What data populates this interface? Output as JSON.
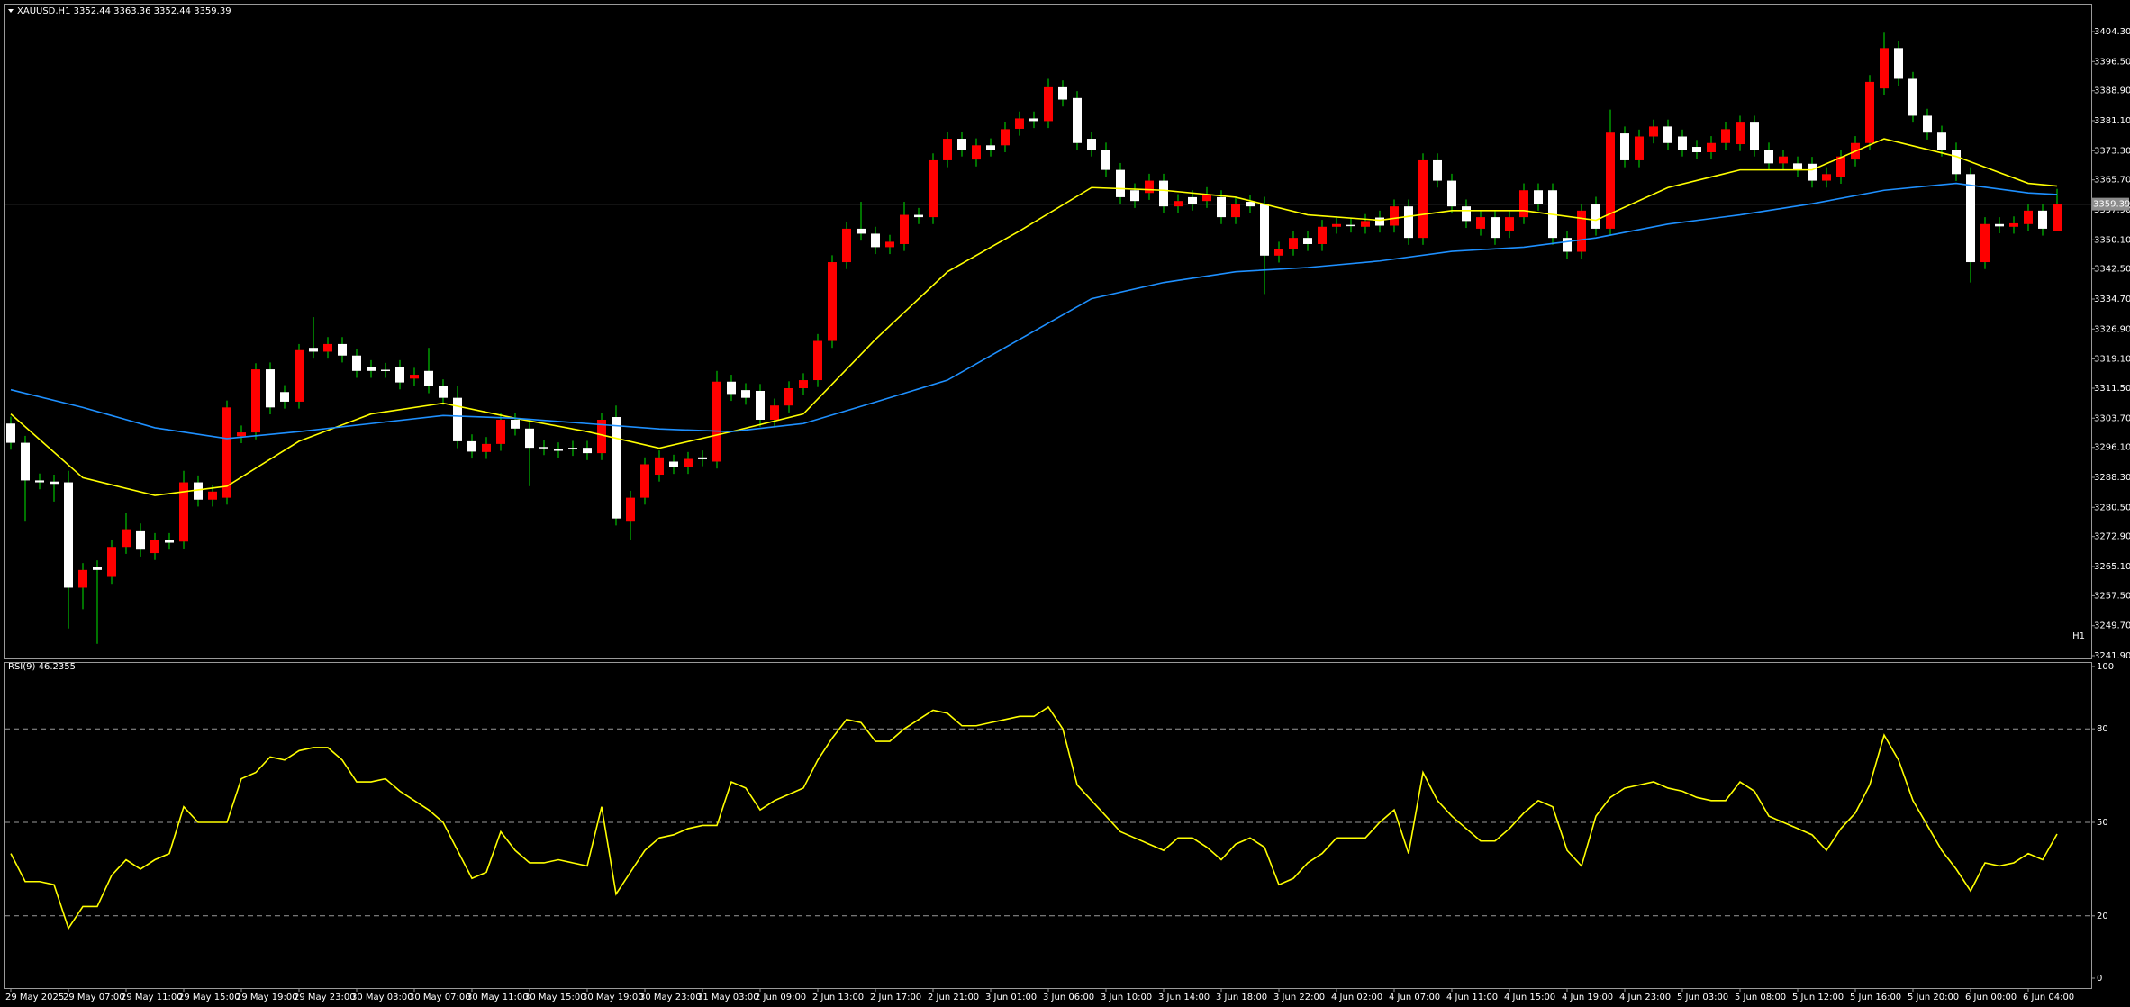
{
  "header": "XAUUSD,H1  3352.44 3363.36 3352.44 3359.39",
  "chart_data": [
    {
      "type": "candlestick",
      "label": "H1",
      "categories": [
        "29 May 2025",
        null,
        null,
        null,
        "29 May 07:00",
        null,
        null,
        null,
        "29 May 11:00",
        null,
        null,
        null,
        "29 May 15:00",
        null,
        null,
        null,
        "29 May 19:00",
        null,
        null,
        null,
        "29 May 23:00",
        null,
        null,
        null,
        "30 May 03:00",
        null,
        null,
        null,
        "30 May 07:00",
        null,
        null,
        null,
        "30 May 11:00",
        null,
        null,
        null,
        "30 May 15:00",
        null,
        null,
        null,
        "30 May 19:00",
        null,
        null,
        null,
        "30 May 23:00",
        null,
        null,
        null,
        "31 May 03:00",
        null,
        null,
        null,
        "2 Jun 09:00",
        null,
        null,
        null,
        "2 Jun 13:00",
        null,
        null,
        null,
        "2 Jun 17:00",
        null,
        null,
        null,
        "2 Jun 21:00",
        null,
        null,
        null,
        "3 Jun 01:00",
        null,
        null,
        null,
        "3 Jun 06:00",
        null,
        null,
        null,
        "3 Jun 10:00",
        null,
        null,
        null,
        "3 Jun 14:00",
        null,
        null,
        null,
        "3 Jun 18:00",
        null,
        null,
        null,
        "3 Jun 22:00",
        null,
        null,
        null,
        "4 Jun 02:00",
        null,
        null,
        null,
        "4 Jun 07:00",
        null,
        null,
        null,
        "4 Jun 11:00",
        null,
        null,
        null,
        "4 Jun 15:00",
        null,
        null,
        null,
        "4 Jun 19:00",
        null,
        null,
        null,
        "4 Jun 23:00",
        null,
        null,
        null,
        "5 Jun 03:00",
        null,
        null,
        null,
        "5 Jun 08:00",
        null,
        null,
        null,
        "5 Jun 12:00",
        null,
        null,
        null,
        "5 Jun 16:00",
        null,
        null,
        null,
        "5 Jun 20:00",
        null,
        null,
        null,
        "6 Jun 00:00",
        null,
        null,
        null,
        "6 Jun 04:00",
        null,
        null
      ],
      "open": [
        3302.3,
        3297.3,
        3287.5,
        3287.2,
        3287.0,
        3259.6,
        3264.9,
        3262.4,
        3270.2,
        3274.5,
        3268.6,
        3272.0,
        3271.6,
        3287.0,
        3282.5,
        3283.0,
        3299.0,
        3300.0,
        3316.4,
        3310.5,
        3308.0,
        3322.0,
        3321.0,
        3323.0,
        3320.0,
        3317.0,
        3316.3,
        3317.0,
        3314.0,
        3316.0,
        3312.0,
        3309.0,
        3297.7,
        3294.9,
        3297.0,
        3303.3,
        3301.0,
        3296.2,
        3295.6,
        3296.0,
        3296.0,
        3294.6,
        3304.0,
        3277.0,
        3283.0,
        3289.0,
        3292.4,
        3291.0,
        3293.5,
        3292.4,
        3313.2,
        3311.0,
        3310.8,
        3303.3,
        3307.0,
        3311.5,
        3313.6,
        3323.8,
        3344.3,
        3353.0,
        3351.7,
        3348.2,
        3349.0,
        3356.6,
        3356.0,
        3370.8,
        3376.4,
        3371.0,
        3374.7,
        3374.7,
        3379.0,
        3381.7,
        3381.0,
        3389.8,
        3387.0,
        3376.4,
        3373.6,
        3368.3,
        3363.0,
        3362.3,
        3365.5,
        3358.8,
        3361.2,
        3360.2,
        3361.2,
        3356.0,
        3360.0,
        3359.5,
        3346.0,
        3347.8,
        3350.6,
        3349.0,
        3353.5,
        3354.0,
        3353.5,
        3355.9,
        3353.8,
        3358.8,
        3350.6,
        3370.8,
        3365.5,
        3358.8,
        3353.0,
        3356.0,
        3352.4,
        3356.0,
        3363.0,
        3363.0,
        3350.6,
        3347.0,
        3359.5,
        3353.0,
        3377.8,
        3370.8,
        3377.0,
        3379.6,
        3377.0,
        3374.3,
        3372.9,
        3375.3,
        3375.0,
        3380.6,
        3373.6,
        3370.0,
        3370.0,
        3369.9,
        3365.5,
        3366.5,
        3371.0,
        3375.3,
        3389.5,
        3400.0,
        3392.0,
        3382.4,
        3378.0,
        3373.6,
        3367.2,
        3344.3,
        3354.2,
        3353.5,
        3354.2,
        3357.7,
        3352.44
      ],
      "high": [
        3304.1,
        3299.1,
        3289.3,
        3289.0,
        3290.0,
        3266.0,
        3266.7,
        3272.0,
        3279.0,
        3276.3,
        3273.8,
        3273.8,
        3290.0,
        3288.8,
        3286.4,
        3308.3,
        3301.8,
        3318.0,
        3318.2,
        3312.3,
        3323.0,
        3330.0,
        3324.8,
        3324.8,
        3321.8,
        3318.8,
        3318.1,
        3318.8,
        3316.8,
        3322.0,
        3313.8,
        3312.0,
        3299.5,
        3298.8,
        3305.1,
        3305.1,
        3302.8,
        3298.0,
        3297.4,
        3297.8,
        3297.8,
        3305.1,
        3307.0,
        3284.8,
        3293.5,
        3295.3,
        3294.2,
        3294.9,
        3295.3,
        3316.0,
        3315.0,
        3312.8,
        3312.6,
        3308.8,
        3313.3,
        3315.4,
        3325.6,
        3346.1,
        3354.8,
        3360.0,
        3353.5,
        3351.4,
        3360.0,
        3358.4,
        3372.6,
        3378.2,
        3378.2,
        3376.5,
        3376.5,
        3380.7,
        3383.5,
        3383.5,
        3392.0,
        3391.6,
        3388.8,
        3378.2,
        3375.4,
        3370.1,
        3364.8,
        3367.3,
        3367.3,
        3362.0,
        3363.0,
        3363.8,
        3363.0,
        3361.3,
        3361.8,
        3361.3,
        3349.6,
        3352.4,
        3352.4,
        3355.3,
        3356.0,
        3355.8,
        3356.8,
        3357.7,
        3360.6,
        3360.6,
        3372.6,
        3372.6,
        3367.3,
        3360.6,
        3357.8,
        3357.8,
        3357.8,
        3364.8,
        3364.8,
        3364.8,
        3352.4,
        3359.5,
        3361.3,
        3384.0,
        3379.6,
        3378.8,
        3381.4,
        3381.4,
        3378.8,
        3376.1,
        3377.1,
        3380.7,
        3382.4,
        3382.4,
        3375.4,
        3373.6,
        3371.8,
        3371.7,
        3369.0,
        3373.6,
        3377.1,
        3393.0,
        3404.0,
        3401.8,
        3393.8,
        3384.2,
        3379.8,
        3375.4,
        3369.0,
        3356.0,
        3356.0,
        3356.2,
        3359.5,
        3359.5,
        3363.36
      ],
      "low": [
        3295.5,
        3277.0,
        3285.2,
        3282.0,
        3249.0,
        3254.0,
        3245.0,
        3260.6,
        3268.4,
        3267.7,
        3266.8,
        3269.5,
        3269.8,
        3280.7,
        3280.7,
        3281.2,
        3297.2,
        3298.2,
        3304.7,
        3306.2,
        3306.2,
        3319.2,
        3319.2,
        3318.2,
        3314.2,
        3314.2,
        3314.2,
        3311.2,
        3312.2,
        3310.2,
        3307.2,
        3295.9,
        3293.2,
        3293.1,
        3295.2,
        3299.2,
        3286.0,
        3294.1,
        3293.4,
        3293.9,
        3292.8,
        3292.8,
        3275.8,
        3272.0,
        3281.2,
        3287.2,
        3289.2,
        3289.2,
        3291.2,
        3290.6,
        3308.2,
        3307.2,
        3301.5,
        3301.5,
        3305.2,
        3309.7,
        3311.8,
        3322.0,
        3342.5,
        3349.9,
        3346.4,
        3346.4,
        3347.2,
        3354.2,
        3354.2,
        3369.0,
        3371.8,
        3369.2,
        3371.8,
        3372.9,
        3377.2,
        3379.2,
        3379.2,
        3384.8,
        3373.5,
        3371.8,
        3366.5,
        3359.4,
        3358.4,
        3360.5,
        3357.0,
        3357.0,
        3357.7,
        3358.4,
        3354.2,
        3354.2,
        3357.0,
        3336.0,
        3344.2,
        3346.0,
        3347.2,
        3347.2,
        3351.7,
        3352.0,
        3351.7,
        3352.0,
        3352.0,
        3348.8,
        3348.8,
        3363.7,
        3357.0,
        3353.2,
        3351.2,
        3348.8,
        3350.6,
        3354.2,
        3357.7,
        3348.8,
        3345.2,
        3345.2,
        3351.2,
        3351.2,
        3369.0,
        3369.0,
        3375.2,
        3373.5,
        3371.8,
        3371.1,
        3371.1,
        3373.5,
        3373.2,
        3371.8,
        3368.2,
        3368.2,
        3366.5,
        3363.7,
        3363.7,
        3364.7,
        3369.2,
        3373.5,
        3387.7,
        3390.2,
        3380.6,
        3376.2,
        3371.8,
        3365.4,
        3339.0,
        3342.5,
        3351.8,
        3351.7,
        3352.4,
        3351.2,
        3352.44
      ],
      "close": [
        3297.3,
        3287.5,
        3287.0,
        3286.6,
        3259.6,
        3264.2,
        3264.2,
        3270.2,
        3274.8,
        3269.5,
        3272.0,
        3271.3,
        3287.0,
        3282.5,
        3284.6,
        3306.5,
        3300.0,
        3316.4,
        3306.5,
        3308.0,
        3321.4,
        3321.0,
        3323.0,
        3320.0,
        3316.0,
        3316.0,
        3316.0,
        3313.0,
        3315.0,
        3312.0,
        3309.0,
        3297.7,
        3295.0,
        3297.0,
        3303.3,
        3301.0,
        3296.0,
        3295.9,
        3295.2,
        3295.7,
        3294.6,
        3303.3,
        3277.6,
        3283.0,
        3291.7,
        3293.5,
        3291.0,
        3293.1,
        3293.0,
        3313.2,
        3310.0,
        3309.0,
        3303.3,
        3307.0,
        3311.5,
        3313.6,
        3323.8,
        3344.3,
        3353.0,
        3351.7,
        3348.2,
        3349.6,
        3356.6,
        3356.0,
        3370.8,
        3376.4,
        3373.6,
        3374.7,
        3373.6,
        3378.9,
        3381.7,
        3381.0,
        3389.8,
        3386.6,
        3375.3,
        3373.6,
        3368.3,
        3361.2,
        3360.2,
        3365.5,
        3358.8,
        3360.2,
        3359.5,
        3362.0,
        3356.0,
        3359.5,
        3358.8,
        3346.0,
        3347.8,
        3350.6,
        3349.0,
        3353.5,
        3354.2,
        3353.8,
        3355.0,
        3353.8,
        3358.8,
        3350.6,
        3370.8,
        3365.5,
        3358.8,
        3355.0,
        3356.0,
        3350.6,
        3356.0,
        3363.0,
        3359.5,
        3350.6,
        3347.0,
        3357.7,
        3353.0,
        3378.0,
        3370.8,
        3377.0,
        3379.6,
        3375.3,
        3373.6,
        3372.9,
        3375.3,
        3378.9,
        3380.6,
        3373.6,
        3370.0,
        3371.8,
        3368.3,
        3365.5,
        3367.2,
        3371.8,
        3375.3,
        3391.2,
        3400.0,
        3392.0,
        3382.4,
        3378.0,
        3373.6,
        3367.2,
        3344.3,
        3354.2,
        3353.6,
        3354.4,
        3357.7,
        3353.0,
        3359.39
      ],
      "up_color": "#ff0000",
      "down_color": "#ffffff",
      "wick_color": "#00c000",
      "series": [
        {
          "color": "#ffff00",
          "x": [
            0,
            5,
            10,
            15,
            20,
            25,
            30,
            35,
            40,
            45,
            50,
            55,
            60,
            65,
            70,
            75,
            80,
            85,
            90,
            95,
            100,
            105,
            110,
            115,
            120,
            125,
            130,
            135,
            140,
            142
          ],
          "values": [
            3304.8,
            3288.2,
            3283.6,
            3286.0,
            3297.7,
            3304.8,
            3307.6,
            3303.7,
            3300.2,
            3295.9,
            3300.2,
            3304.8,
            3324.2,
            3341.8,
            3352.4,
            3363.7,
            3363.0,
            3361.2,
            3356.6,
            3355.2,
            3357.7,
            3357.7,
            3355.2,
            3363.7,
            3368.3,
            3368.3,
            3376.4,
            3371.8,
            3364.8,
            3364.1
          ]
        },
        {
          "color": "#1e90ff",
          "x": [
            0,
            5,
            10,
            15,
            20,
            25,
            30,
            35,
            40,
            45,
            50,
            55,
            60,
            65,
            70,
            75,
            80,
            85,
            90,
            95,
            100,
            105,
            110,
            115,
            120,
            125,
            130,
            135,
            140,
            142
          ],
          "values": [
            3311.1,
            3306.5,
            3301.2,
            3298.4,
            3300.2,
            3302.3,
            3304.4,
            3303.7,
            3302.3,
            3300.9,
            3300.2,
            3302.3,
            3307.9,
            3313.6,
            3324.2,
            3334.8,
            3339.0,
            3341.8,
            3342.9,
            3344.6,
            3347.1,
            3348.2,
            3350.6,
            3354.2,
            3356.6,
            3359.5,
            3363.0,
            3364.8,
            3362.3,
            3361.9
          ]
        }
      ],
      "last_price": 3359.39,
      "ylim": [
        3241.9,
        3404.3
      ],
      "yticks": [
        {
          "value": 3241.9,
          "label": "3241.90"
        },
        {
          "value": 3249.7,
          "label": "3249.70"
        },
        {
          "value": 3257.5,
          "label": "3257.50"
        },
        {
          "value": 3265.1,
          "label": "3265.10"
        },
        {
          "value": 3272.9,
          "label": "3272.90"
        },
        {
          "value": 3280.5,
          "label": "3280.50"
        },
        {
          "value": 3288.3,
          "label": "3288.30"
        },
        {
          "value": 3296.1,
          "label": "3296.10"
        },
        {
          "value": 3303.7,
          "label": "3303.70"
        },
        {
          "value": 3311.5,
          "label": "3311.50"
        },
        {
          "value": 3319.1,
          "label": "3319.10"
        },
        {
          "value": 3326.9,
          "label": "3326.90"
        },
        {
          "value": 3334.7,
          "label": "3334.70"
        },
        {
          "value": 3342.5,
          "label": "3342.50"
        },
        {
          "value": 3350.1,
          "label": "3350.10"
        },
        {
          "value": 3357.9,
          "label": "3357.90"
        },
        {
          "value": 3365.7,
          "label": "3365.70"
        },
        {
          "value": 3373.3,
          "label": "3373.30"
        },
        {
          "value": 3381.1,
          "label": "3381.10"
        },
        {
          "value": 3388.9,
          "label": "3388.90"
        },
        {
          "value": 3396.5,
          "label": "3396.50"
        },
        {
          "value": 3404.3,
          "label": "3404.30"
        }
      ]
    },
    {
      "type": "line",
      "title": "RSI(9) 46.2355",
      "color": "#ffff00",
      "values": [
        40,
        31,
        31,
        30,
        16,
        23,
        23,
        33,
        38,
        35,
        38,
        40,
        55,
        50,
        50,
        50,
        64,
        66,
        71,
        70,
        73,
        74,
        74,
        70,
        63,
        63,
        64,
        60,
        57,
        54,
        50,
        41,
        32,
        34,
        47,
        41,
        37,
        37,
        38,
        37,
        36,
        55,
        27,
        34,
        41,
        45,
        46,
        48,
        49,
        49,
        63,
        61,
        54,
        57,
        59,
        61,
        70,
        77,
        83,
        82,
        76,
        76,
        80,
        83,
        86,
        85,
        81,
        81,
        82,
        83,
        84,
        84,
        87,
        80,
        62,
        57,
        52,
        47,
        45,
        43,
        41,
        45,
        45,
        42,
        38,
        43,
        45,
        42,
        30,
        32,
        37,
        40,
        45,
        45,
        45,
        50,
        54,
        40,
        66,
        57,
        52,
        48,
        44,
        44,
        48,
        53,
        57,
        55,
        41,
        36,
        52,
        58,
        61,
        62,
        63,
        61,
        60,
        58,
        57,
        57,
        63,
        60,
        52,
        50,
        48,
        46,
        41,
        48,
        53,
        62,
        78,
        70,
        57,
        49,
        41,
        35,
        28,
        37,
        36,
        37,
        40,
        38,
        46.2355
      ],
      "ylim": [
        0,
        100
      ],
      "yticks": [
        0,
        20,
        50,
        80,
        100
      ],
      "levels": [
        20,
        50,
        80
      ]
    }
  ]
}
